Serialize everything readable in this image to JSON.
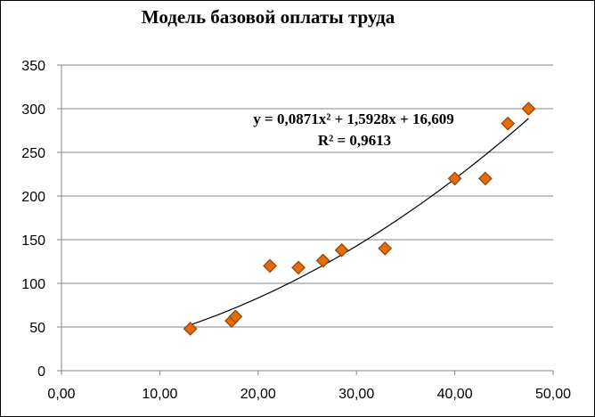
{
  "chart_data": {
    "type": "scatter",
    "title": "Модель базовой оплаты труда",
    "xlabel": "",
    "ylabel": "",
    "xlim": [
      0,
      50
    ],
    "ylim": [
      0,
      350
    ],
    "x_ticks": [
      "0,00",
      "10,00",
      "20,00",
      "30,00",
      "40,00",
      "50,00"
    ],
    "y_ticks": [
      "0",
      "50",
      "100",
      "150",
      "200",
      "250",
      "300",
      "350"
    ],
    "grid": {
      "horizontal": true,
      "vertical": false
    },
    "marker": "diamond",
    "colors": {
      "marker_fill": "#E46C0A",
      "marker_stroke": "#984807",
      "trendline": "#000000",
      "grid": "#868686"
    },
    "points": [
      {
        "x": 13.1,
        "y": 48
      },
      {
        "x": 17.3,
        "y": 57
      },
      {
        "x": 17.7,
        "y": 62
      },
      {
        "x": 21.2,
        "y": 120
      },
      {
        "x": 24.1,
        "y": 118
      },
      {
        "x": 26.6,
        "y": 126
      },
      {
        "x": 28.5,
        "y": 138
      },
      {
        "x": 32.9,
        "y": 140
      },
      {
        "x": 40.0,
        "y": 220
      },
      {
        "x": 43.1,
        "y": 220
      },
      {
        "x": 45.4,
        "y": 283
      },
      {
        "x": 47.5,
        "y": 300
      }
    ],
    "trendline": {
      "type": "polynomial",
      "order": 2,
      "coefficients": [
        0.0871,
        1.5928,
        16.609
      ],
      "x_range": [
        13.1,
        47.5
      ],
      "equation_label": "y = 0,0871x² + 1,5928x + 16,609",
      "r2_label": "R² = 0,9613"
    }
  }
}
